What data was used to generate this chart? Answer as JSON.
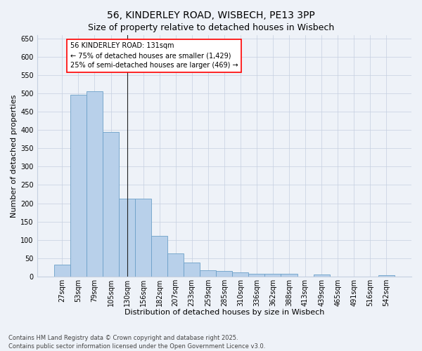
{
  "title_line1": "56, KINDERLEY ROAD, WISBECH, PE13 3PP",
  "title_line2": "Size of property relative to detached houses in Wisbech",
  "xlabel": "Distribution of detached houses by size in Wisbech",
  "ylabel": "Number of detached properties",
  "categories": [
    "27sqm",
    "53sqm",
    "79sqm",
    "105sqm",
    "130sqm",
    "156sqm",
    "182sqm",
    "207sqm",
    "233sqm",
    "259sqm",
    "285sqm",
    "310sqm",
    "336sqm",
    "362sqm",
    "388sqm",
    "413sqm",
    "439sqm",
    "465sqm",
    "491sqm",
    "516sqm",
    "542sqm"
  ],
  "values": [
    32,
    497,
    507,
    395,
    212,
    212,
    110,
    63,
    38,
    16,
    15,
    10,
    8,
    8,
    8,
    0,
    5,
    0,
    0,
    0,
    4
  ],
  "bar_color": "#b8d0ea",
  "bar_edge_color": "#6ca0c8",
  "annotation_text_line1": "56 KINDERLEY ROAD: 131sqm",
  "annotation_text_line2": "← 75% of detached houses are smaller (1,429)",
  "annotation_text_line3": "25% of semi-detached houses are larger (469) →",
  "annotation_box_color": "white",
  "annotation_box_edge_color": "red",
  "vline_color": "#222222",
  "vline_x_index": 4,
  "ylim": [
    0,
    660
  ],
  "yticks": [
    0,
    50,
    100,
    150,
    200,
    250,
    300,
    350,
    400,
    450,
    500,
    550,
    600,
    650
  ],
  "bg_color": "#eef2f8",
  "footnote_line1": "Contains HM Land Registry data © Crown copyright and database right 2025.",
  "footnote_line2": "Contains public sector information licensed under the Open Government Licence v3.0.",
  "title_fontsize": 10,
  "axis_label_fontsize": 8,
  "tick_fontsize": 7,
  "annot_fontsize": 7,
  "footnote_fontsize": 6
}
